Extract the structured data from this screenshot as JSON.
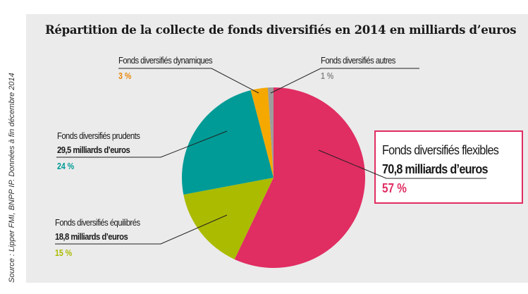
{
  "chart_data": {
    "type": "pie",
    "title": "Répartition de la collecte de fonds diversifiés en 2014 en milliards d’euros",
    "source": "Source : Lipper FMI, BNPP IP. Données à fin décembre 2014",
    "slices": [
      {
        "name": "Fonds diversifiés flexibles",
        "amount_label": "70,8 milliards d’euros",
        "value": 57,
        "pct_label": "57 %",
        "color": "#e02d62"
      },
      {
        "name": "Fonds diversifiés équilibrés",
        "amount_label": "18,8 milliards d’euros",
        "value": 15,
        "pct_label": "15 %",
        "color": "#abbb00"
      },
      {
        "name": "Fonds diversifiés prudents",
        "amount_label": "29,5 milliards d’euros",
        "value": 24,
        "pct_label": "24 %",
        "color": "#009b96"
      },
      {
        "name": "Fonds diversifiés dynamiques",
        "value": 3,
        "pct_label": "3 %",
        "color": "#f5a800"
      },
      {
        "name": "Fonds diversifiés autres",
        "value": 1,
        "pct_label": "1 %",
        "color": "#9d9d9d"
      }
    ]
  }
}
